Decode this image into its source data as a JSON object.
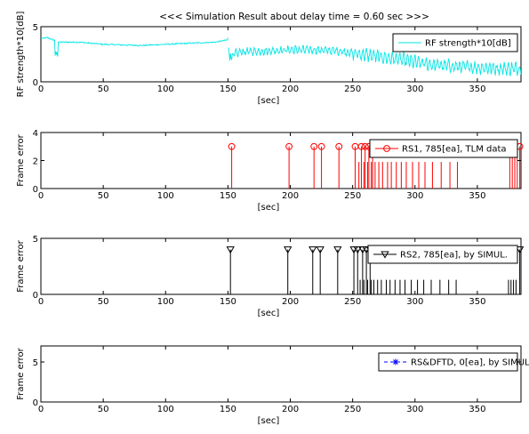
{
  "title": "<<< Simulation Result about delay time = 0.60 sec >>>",
  "chart_data": [
    {
      "type": "line",
      "ylabel": "RF strength*10[dB]",
      "xlabel": "[sec]",
      "xlim": [
        0,
        385
      ],
      "ylim": [
        0,
        5
      ],
      "xticks": [
        "0",
        "50",
        "100",
        "150",
        "200",
        "250",
        "300",
        "350"
      ],
      "yticks": [
        "0",
        "5"
      ],
      "legend": {
        "label": "RF strength*10[dB]",
        "placement": "top-right",
        "marker": "line"
      },
      "color": "#00e5e5",
      "series_segments": [
        {
          "x": [
            0,
            5,
            15,
            30,
            50,
            80,
            100,
            120,
            140,
            150
          ],
          "y": [
            3.9,
            4.0,
            3.6,
            3.6,
            3.4,
            3.3,
            3.4,
            3.5,
            3.6,
            3.8
          ]
        },
        {
          "x": [
            150,
            152,
            160,
            180,
            200,
            220,
            240,
            250,
            270,
            290,
            310,
            330,
            350,
            370,
            385
          ],
          "y": [
            2.8,
            2.4,
            2.7,
            2.8,
            2.9,
            2.9,
            2.8,
            2.6,
            2.3,
            2.0,
            1.6,
            1.4,
            1.3,
            1.2,
            1.2
          ]
        }
      ]
    },
    {
      "type": "stem",
      "ylabel": "Frame error",
      "xlabel": "[sec]",
      "xlim": [
        0,
        385
      ],
      "ylim": [
        0,
        4
      ],
      "xticks": [
        "0",
        "50",
        "100",
        "150",
        "200",
        "250",
        "300",
        "350"
      ],
      "yticks": [
        "0",
        "2",
        "4"
      ],
      "legend": {
        "label": "RS1, 785[ea], TLM data",
        "placement": "top-right",
        "marker": "circle"
      },
      "color": "#ff0000",
      "marker": "circle",
      "marked_x": [
        153,
        199,
        219,
        225,
        239,
        252,
        257,
        260,
        263,
        266,
        384
      ],
      "marker_value": 3,
      "stems_x": [
        153,
        199,
        219,
        225,
        239,
        252,
        255,
        257,
        259,
        260,
        262,
        263,
        265,
        266,
        268,
        271,
        274,
        278,
        281,
        285,
        289,
        293,
        298,
        303,
        308,
        314,
        321,
        328,
        334,
        376,
        378,
        380,
        382,
        384
      ],
      "stems_y": [
        3,
        3,
        3,
        3,
        3,
        3,
        1.9,
        3,
        1.9,
        3,
        1.9,
        3,
        1.9,
        3,
        1.9,
        1.9,
        1.9,
        1.9,
        1.9,
        1.9,
        1.9,
        1.9,
        1.9,
        1.9,
        1.9,
        1.9,
        1.9,
        1.9,
        1.9,
        2.7,
        2.7,
        2.7,
        2.7,
        3
      ]
    },
    {
      "type": "stem",
      "ylabel": "Frame error",
      "xlabel": "[sec]",
      "xlim": [
        0,
        385
      ],
      "ylim": [
        0,
        5
      ],
      "xticks": [
        "0",
        "50",
        "100",
        "150",
        "200",
        "250",
        "300",
        "350"
      ],
      "yticks": [
        "0",
        "5"
      ],
      "legend": {
        "label": "RS2, 785[ea], by SIMUL.",
        "placement": "top-right",
        "marker": "triangle-down"
      },
      "color": "#000000",
      "marker": "triangle-down",
      "marked_x": [
        152,
        198,
        218,
        224,
        238,
        251,
        254,
        258,
        261,
        264,
        384
      ],
      "marker_value": 4,
      "stems_x": [
        152,
        198,
        218,
        224,
        238,
        251,
        254,
        256,
        258,
        259,
        261,
        262,
        264,
        265,
        267,
        270,
        273,
        277,
        280,
        284,
        288,
        292,
        297,
        302,
        307,
        313,
        320,
        327,
        333,
        375,
        377,
        379,
        381,
        384
      ],
      "stems_y": [
        4,
        4,
        4,
        4,
        4,
        4,
        4,
        1.3,
        4,
        1.3,
        4,
        1.3,
        4,
        1.3,
        1.3,
        1.3,
        1.3,
        1.3,
        1.3,
        1.3,
        1.3,
        1.3,
        1.3,
        1.3,
        1.3,
        1.3,
        1.3,
        1.3,
        1.3,
        1.3,
        1.3,
        1.3,
        1.3,
        4
      ]
    },
    {
      "type": "stem",
      "ylabel": "Frame error",
      "xlabel": "[sec]",
      "xlim": [
        0,
        385
      ],
      "ylim": [
        0,
        7
      ],
      "xticks": [
        "0",
        "50",
        "100",
        "150",
        "200",
        "250",
        "300",
        "350"
      ],
      "yticks": [
        "0",
        "5"
      ],
      "legend": {
        "label": "RS&DFTD, 0[ea], by SIMUL.",
        "placement": "top-right",
        "marker": "star"
      },
      "color": "#0000ff",
      "stems_x": [],
      "stems_y": []
    }
  ]
}
